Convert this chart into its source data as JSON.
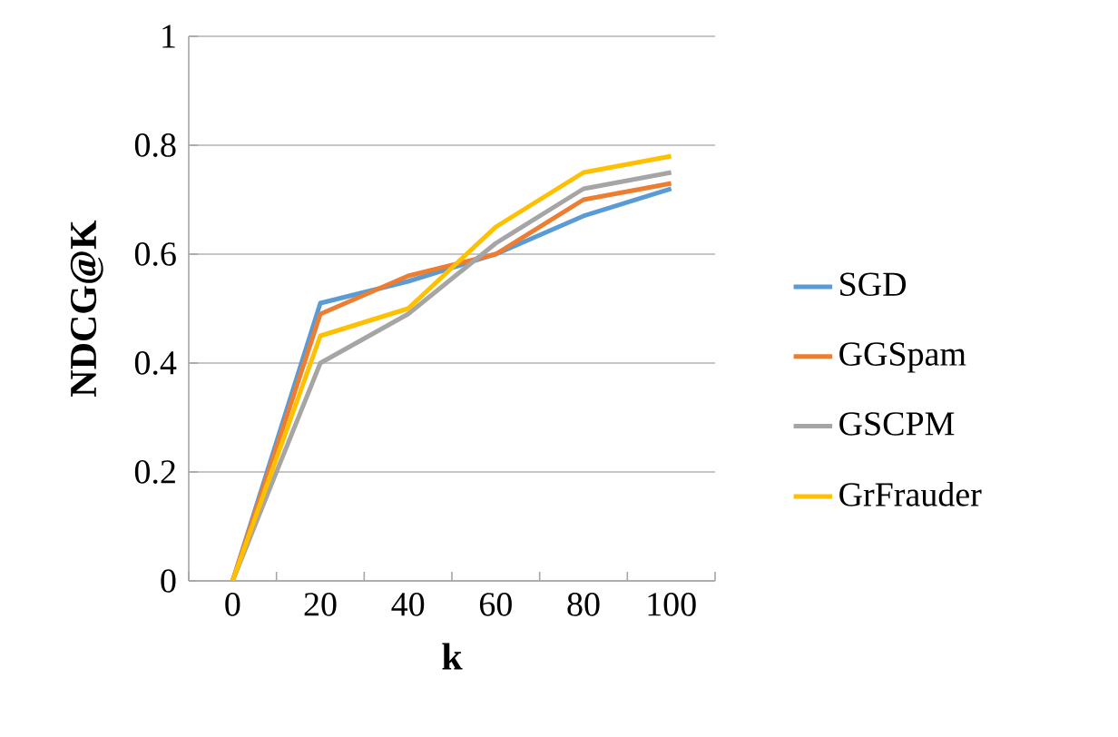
{
  "chart_data": {
    "type": "line",
    "xlabel": "k",
    "ylabel": "NDCG@K",
    "categories": [
      "0",
      "20",
      "40",
      "60",
      "80",
      "100"
    ],
    "series": [
      {
        "name": "SGD",
        "color": "#5b9bd5",
        "values": [
          0,
          0.51,
          0.55,
          0.6,
          0.67,
          0.72
        ]
      },
      {
        "name": "GGSpam",
        "color": "#ed7d31",
        "values": [
          0,
          0.49,
          0.56,
          0.6,
          0.7,
          0.73
        ]
      },
      {
        "name": "GSCPM",
        "color": "#a5a5a5",
        "values": [
          0,
          0.4,
          0.49,
          0.62,
          0.72,
          0.75
        ]
      },
      {
        "name": "GrFrauder",
        "color": "#ffc000",
        "values": [
          0,
          0.45,
          0.5,
          0.65,
          0.75,
          0.78
        ]
      }
    ],
    "ylim": [
      0,
      1
    ],
    "yticks": [
      0,
      0.2,
      0.4,
      0.6,
      0.8,
      1
    ],
    "grid": "y",
    "legend": "right"
  }
}
